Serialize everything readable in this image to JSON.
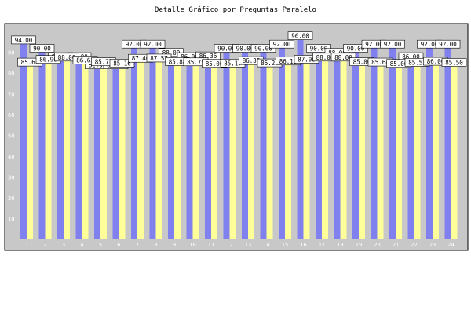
{
  "chart_data": {
    "type": "bar",
    "title": "Detalle Gráfico por Preguntas Paralelo",
    "xlabel": "",
    "ylabel": "",
    "ylim": [
      0,
      100
    ],
    "yticks": [
      10,
      20,
      30,
      40,
      50,
      60,
      70,
      80,
      90
    ],
    "grid": false,
    "legend": "none",
    "categories": [
      "1",
      "2",
      "3",
      "4",
      "5",
      "6",
      "7",
      "8",
      "9",
      "10",
      "11",
      "12",
      "13",
      "14",
      "15",
      "16",
      "17",
      "18",
      "19",
      "20",
      "21",
      "22",
      "23",
      "24"
    ],
    "series": [
      {
        "color": "#8080ee",
        "values": [
          94.0,
          90.0,
          86.0,
          86.0,
          82.0,
          82.0,
          92.0,
          92.0,
          88.0,
          86.0,
          86.36,
          90.0,
          90.0,
          90.0,
          92.0,
          96.0,
          90.0,
          88.0,
          90.0,
          92.0,
          92.0,
          86.0,
          92.0,
          92.0
        ]
      },
      {
        "color": "#ffff99",
        "values": [
          85.61,
          86.9,
          88.0,
          86.63,
          85.77,
          85.16,
          87.46,
          87.57,
          85.88,
          85.75,
          85.0,
          85.17,
          86.35,
          85.25,
          86.13,
          87.0,
          88.0,
          88.0,
          85.8,
          85.64,
          85.0,
          85.53,
          86.0,
          85.5
        ]
      }
    ],
    "colors": {
      "background": "#c8c8c8",
      "frame": "#000000",
      "label_box": "#ffffff",
      "tick_text": "#ffffff"
    }
  }
}
